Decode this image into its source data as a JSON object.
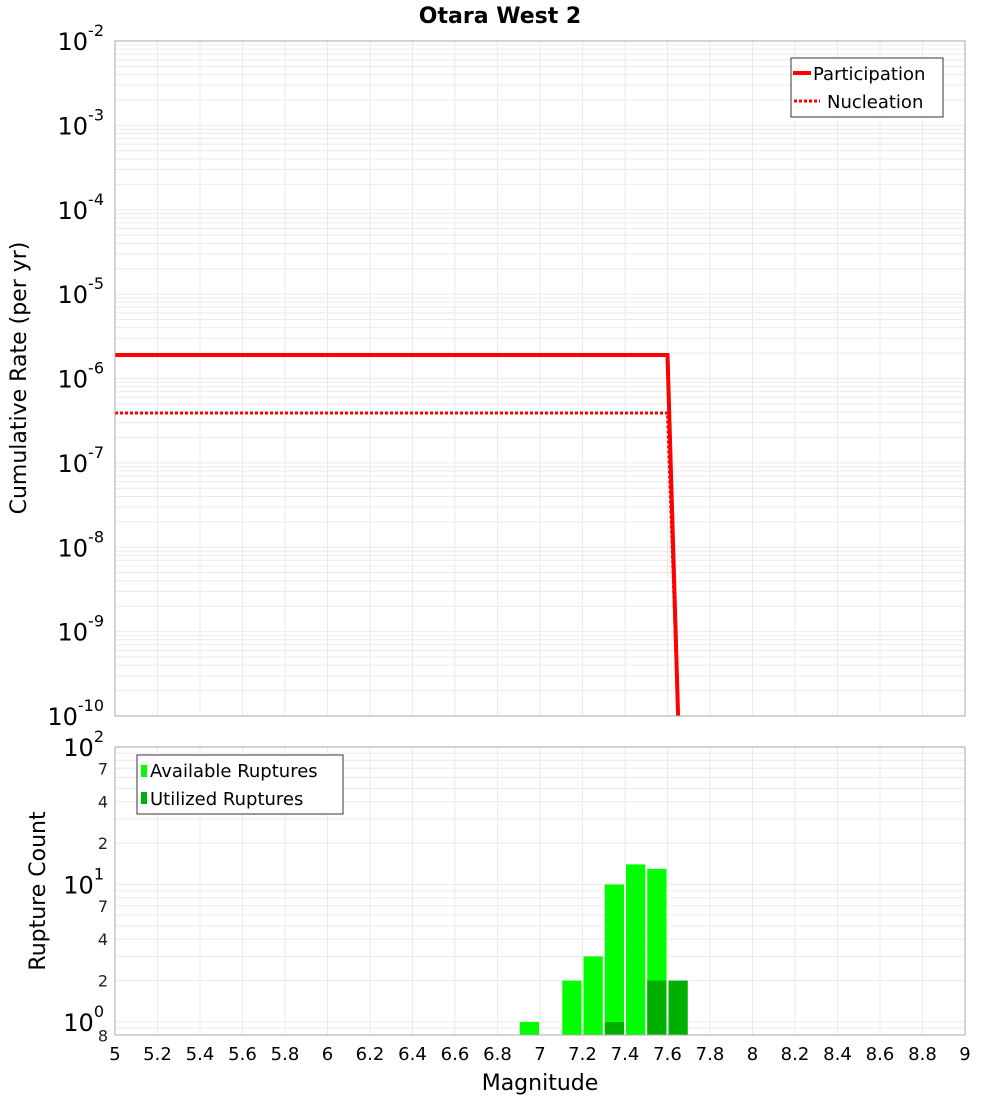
{
  "chart_data": [
    {
      "type": "line",
      "title": "Otara West 2",
      "xlabel": "Magnitude",
      "ylabel": "Cumulative Rate (per yr)",
      "xlim": [
        5,
        9
      ],
      "ylim": [
        1e-10,
        0.01
      ],
      "yscale": "log",
      "grid": true,
      "legend_position": "top-right",
      "y_ticks": [
        "10^-2",
        "10^-3",
        "10^-4",
        "10^-5",
        "10^-6",
        "10^-7",
        "10^-8",
        "10^-9",
        "10^-10"
      ],
      "series": [
        {
          "name": "Participation",
          "style": "solid",
          "color": "#ff0000",
          "x": [
            5.0,
            7.6,
            7.65
          ],
          "y": [
            1.9e-06,
            1.9e-06,
            1e-10
          ]
        },
        {
          "name": "Nucleation",
          "style": "dotted",
          "color": "#ff0000",
          "x": [
            5.0,
            7.6,
            7.65
          ],
          "y": [
            3.9e-07,
            3.9e-07,
            1e-10
          ]
        }
      ]
    },
    {
      "type": "bar",
      "title": "",
      "xlabel": "Magnitude",
      "ylabel": "Rupture Count",
      "xlim": [
        5,
        9
      ],
      "ylim": [
        0.8,
        100
      ],
      "yscale": "log",
      "grid": true,
      "legend_position": "top-left",
      "x_ticks": [
        "5",
        "5.2",
        "5.4",
        "5.6",
        "5.8",
        "6",
        "6.2",
        "6.4",
        "6.6",
        "6.8",
        "7",
        "7.2",
        "7.4",
        "7.6",
        "7.8",
        "8",
        "8.2",
        "8.4",
        "8.6",
        "8.8",
        "9"
      ],
      "y_ticks_major": [
        "10^2",
        "10^1",
        "10^0"
      ],
      "y_ticks_minor": [
        "7",
        "4",
        "2",
        "7",
        "4",
        "2",
        "8"
      ],
      "bin_width": 0.1,
      "categories": [
        6.95,
        7.15,
        7.25,
        7.35,
        7.45,
        7.55,
        7.65
      ],
      "series": [
        {
          "name": "Available Ruptures",
          "color": "#00ff00",
          "values": [
            1,
            2,
            3,
            10,
            14,
            13,
            0
          ]
        },
        {
          "name": "Utilized Ruptures",
          "color": "#00b000",
          "values": [
            0,
            0,
            0,
            1,
            0,
            2,
            2
          ]
        }
      ]
    }
  ],
  "labels": {
    "title": "Otara West 2",
    "xlabel": "Magnitude",
    "ylabel_top": "Cumulative Rate (per yr)",
    "ylabel_bottom": "Rupture Count",
    "legend_top": [
      "Participation",
      "Nucleation"
    ],
    "legend_bottom": [
      "Available Ruptures",
      "Utilized Ruptures"
    ]
  },
  "colors": {
    "participation": "#ff0000",
    "nucleation": "#ff0000",
    "available": "#00ff00",
    "utilized": "#00b000",
    "grid": "#ebebeb",
    "frame": "#a8a8a8"
  }
}
